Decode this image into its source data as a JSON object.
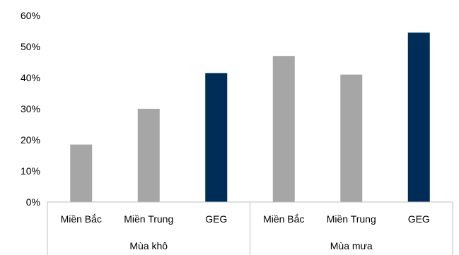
{
  "chart_data": {
    "type": "bar",
    "title": "",
    "xlabel": "",
    "ylabel": "",
    "ylim": [
      0,
      60
    ],
    "y_ticks": [
      "0%",
      "10%",
      "20%",
      "30%",
      "40%",
      "50%",
      "60%"
    ],
    "y_tick_values": [
      0,
      10,
      20,
      30,
      40,
      50,
      60
    ],
    "grid": false,
    "legend": "none",
    "groups": [
      {
        "name": "Mùa khô",
        "categories": [
          "Miền Bắc",
          "Miền Trung",
          "GEG"
        ],
        "values": [
          18.5,
          30,
          41.5
        ]
      },
      {
        "name": "Mùa mưa",
        "categories": [
          "Miền Bắc",
          "Miền Trung",
          "GEG"
        ],
        "values": [
          47,
          41,
          54.5
        ]
      }
    ],
    "colors": {
      "region": "#a6a6a6",
      "highlight": "#002d57",
      "axis": "#bfbfbf"
    },
    "highlight_category": "GEG"
  }
}
